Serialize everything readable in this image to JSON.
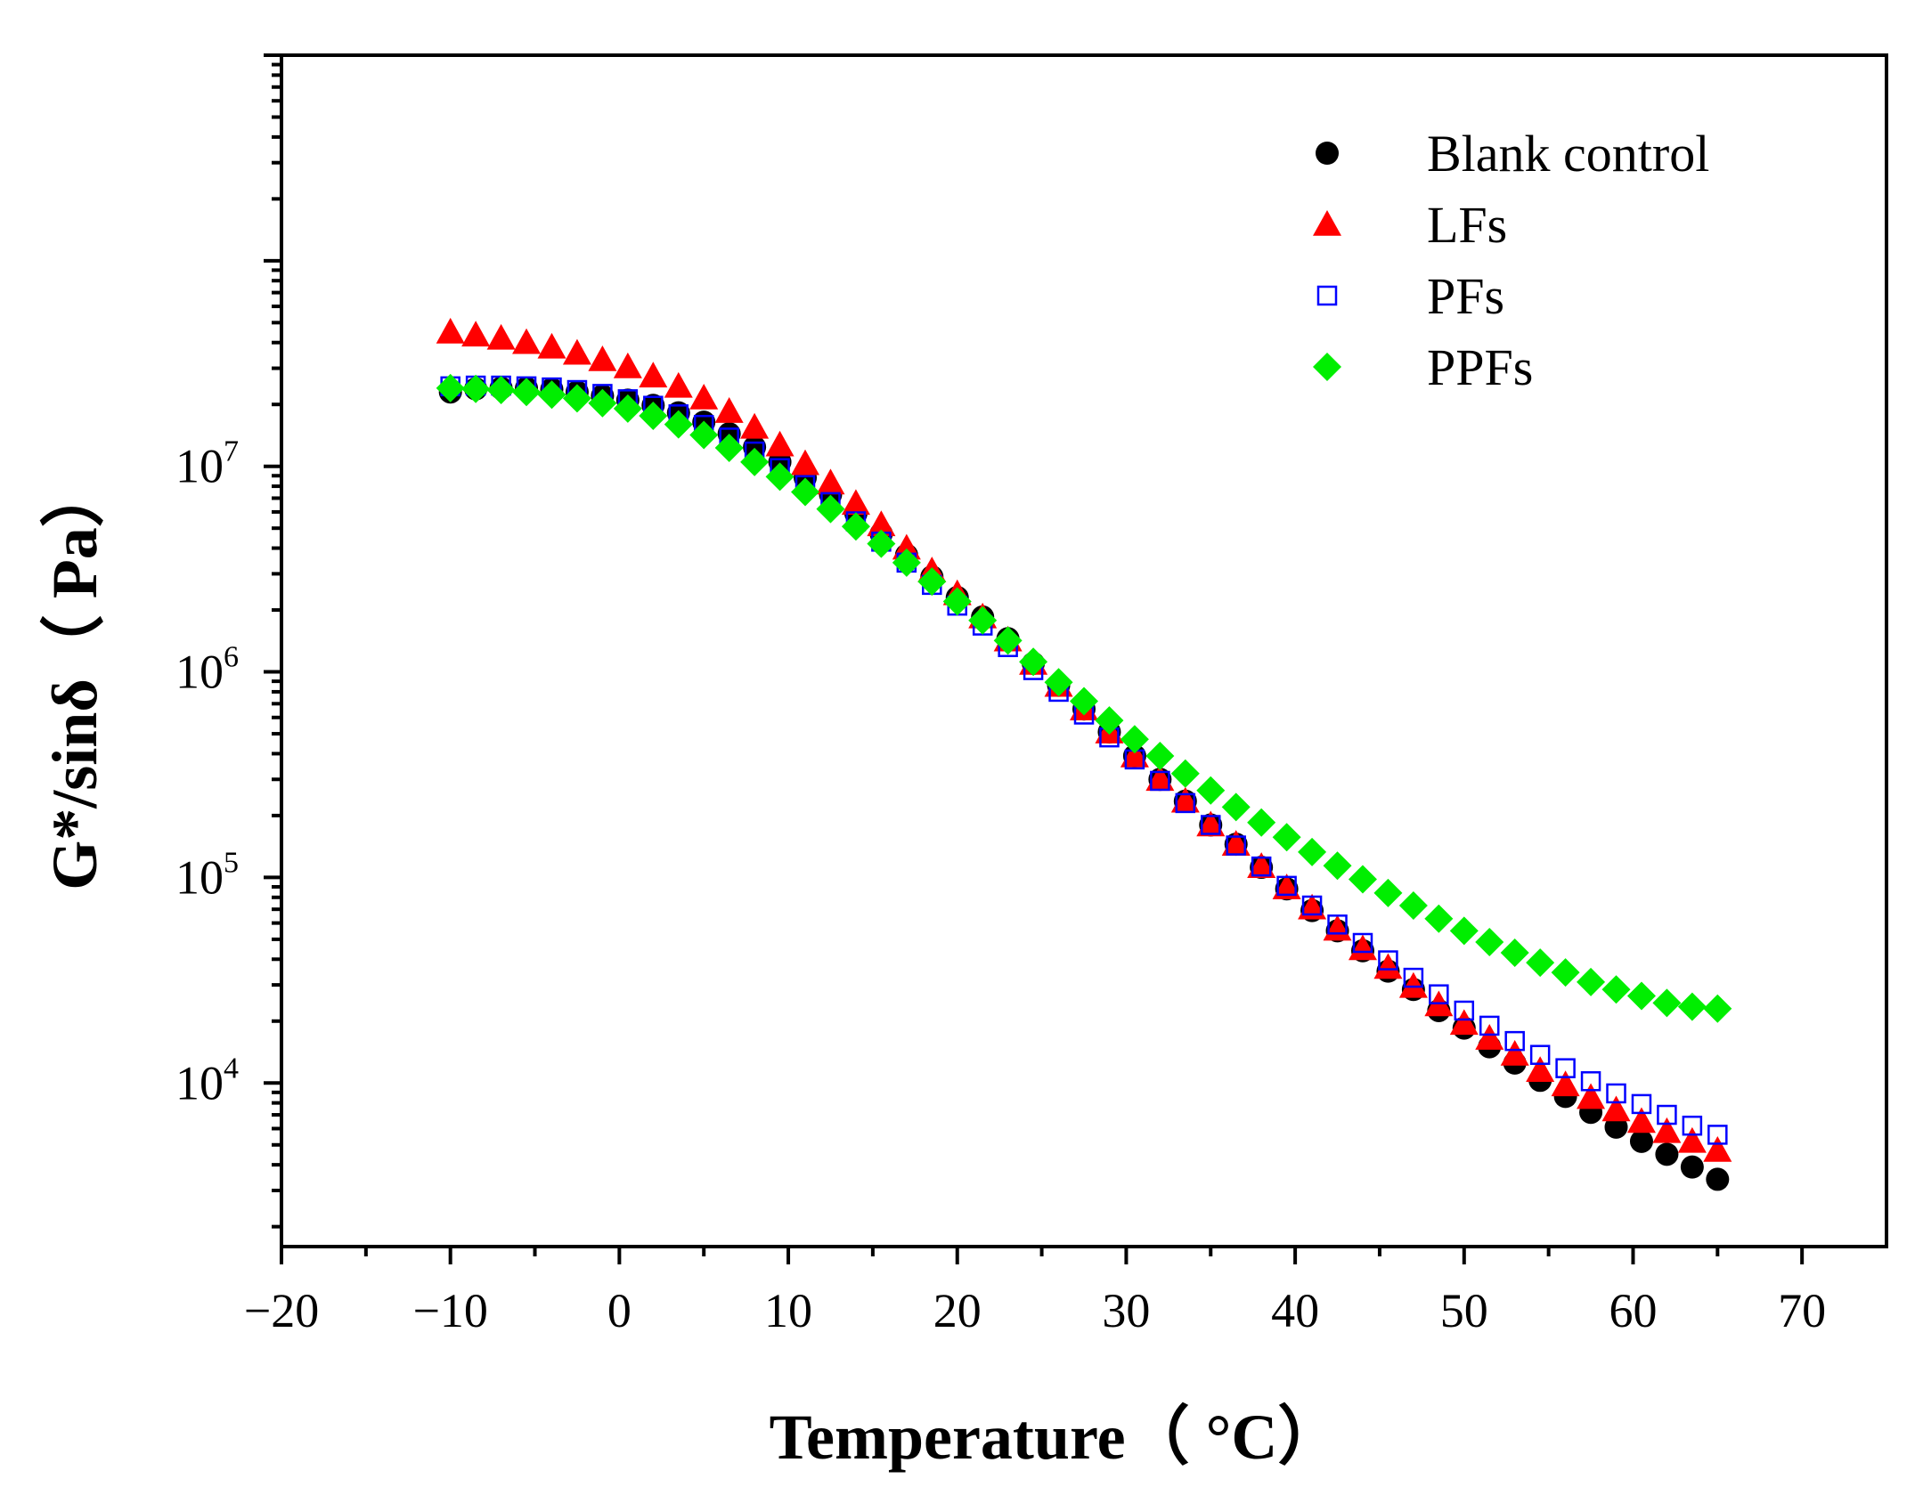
{
  "chart_data": {
    "type": "scatter",
    "title": "",
    "xlabel": "Temperature（ °C）",
    "ylabel": "G*/sinδ（ Pa）",
    "xlim": [
      -20,
      75
    ],
    "ylim": [
      1600,
      1000000000
    ],
    "yscale": "log",
    "x_ticks": [
      -20,
      -10,
      0,
      10,
      20,
      30,
      40,
      50,
      60,
      70
    ],
    "x_tick_labels": [
      "−20",
      "−10",
      "0",
      "10",
      "20",
      "30",
      "40",
      "50",
      "60",
      "70"
    ],
    "y_ticks": [
      {
        "value": 10000,
        "base": "10",
        "exp": "4"
      },
      {
        "value": 100000,
        "base": "10",
        "exp": "5"
      },
      {
        "value": 1000000,
        "base": "10",
        "exp": "6"
      },
      {
        "value": 10000000,
        "base": "10",
        "exp": "7"
      }
    ],
    "legend_position": "top-right",
    "x": [
      -10,
      -8.5,
      -7,
      -5.5,
      -4,
      -2.5,
      -1,
      0.5,
      2,
      3.5,
      5,
      6.5,
      8,
      9.5,
      11,
      12.5,
      14,
      15.5,
      17,
      18.5,
      20,
      21.5,
      23,
      24.5,
      26,
      27.5,
      29,
      30.5,
      32,
      33.5,
      35,
      36.5,
      38,
      39.5,
      41,
      42.5,
      44,
      45.5,
      47,
      48.5,
      50,
      51.5,
      53,
      54.5,
      56,
      57.5,
      59,
      60.5,
      62,
      63.5,
      65
    ],
    "series": [
      {
        "name": "Blank control",
        "marker": "circle",
        "color": "#000000",
        "values": [
          23000000,
          23800000,
          24000000,
          24000000,
          23700000,
          23000000,
          22000000,
          21000000,
          19800000,
          18200000,
          16400000,
          14400000,
          12400000,
          10500000,
          8800000,
          7300000,
          5900000,
          4700000,
          3700000,
          2900000,
          2300000,
          1850000,
          1450000,
          1100000,
          860000,
          660000,
          510000,
          390000,
          300000,
          235000,
          180000,
          145000,
          112000,
          88000,
          69000,
          55000,
          44000,
          35000,
          28500,
          22500,
          18500,
          15000,
          12500,
          10300,
          8600,
          7200,
          6100,
          5200,
          4500,
          3900,
          3400
        ]
      },
      {
        "name": "LFs",
        "marker": "triangle",
        "color": "#ff0000",
        "values": [
          45000000,
          43500000,
          42000000,
          40000000,
          38000000,
          35500000,
          33000000,
          30500000,
          27500000,
          24500000,
          21500000,
          18500000,
          15500000,
          12700000,
          10300000,
          8300000,
          6600000,
          5200000,
          4000000,
          3100000,
          2400000,
          1850000,
          1430000,
          1100000,
          860000,
          660000,
          510000,
          390000,
          300000,
          235000,
          180000,
          145000,
          113000,
          89000,
          71000,
          56000,
          45000,
          36500,
          29500,
          24000,
          19500,
          16500,
          13800,
          11500,
          9800,
          8500,
          7400,
          6500,
          5800,
          5200,
          4700
        ]
      },
      {
        "name": "PFs",
        "marker": "square-open",
        "color": "#0000ff",
        "values": [
          24500000,
          24700000,
          24700000,
          24500000,
          24200000,
          23500000,
          22500000,
          21200000,
          19700000,
          17900000,
          15900000,
          13800000,
          11800000,
          9800000,
          8100000,
          6700000,
          5400000,
          4300000,
          3400000,
          2650000,
          2100000,
          1680000,
          1320000,
          1020000,
          800000,
          620000,
          480000,
          375000,
          295000,
          230000,
          180000,
          143000,
          113000,
          91000,
          73000,
          59000,
          48000,
          39500,
          32500,
          27000,
          22500,
          19000,
          16000,
          13700,
          11800,
          10200,
          8900,
          7900,
          7000,
          6200,
          5600
        ]
      },
      {
        "name": "PPFs",
        "marker": "diamond",
        "color": "#00ee00",
        "values": [
          24000000,
          23800000,
          23500000,
          23000000,
          22300000,
          21400000,
          20300000,
          19100000,
          17600000,
          16000000,
          14200000,
          12300000,
          10500000,
          8900000,
          7500000,
          6200000,
          5100000,
          4200000,
          3400000,
          2750000,
          2200000,
          1780000,
          1420000,
          1120000,
          890000,
          720000,
          580000,
          470000,
          390000,
          320000,
          265000,
          220000,
          185000,
          157000,
          133000,
          114000,
          98000,
          84000,
          73000,
          63000,
          55000,
          48500,
          43000,
          38500,
          34500,
          31000,
          28500,
          26500,
          24500,
          23500,
          23000
        ]
      }
    ]
  }
}
